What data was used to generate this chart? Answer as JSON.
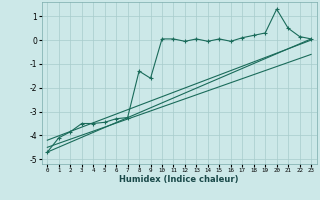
{
  "xlabel": "Humidex (Indice chaleur)",
  "xlim": [
    -0.5,
    23.5
  ],
  "ylim": [
    -5.2,
    1.6
  ],
  "yticks": [
    -5,
    -4,
    -3,
    -2,
    -1,
    0,
    1
  ],
  "xticks": [
    0,
    1,
    2,
    3,
    4,
    5,
    6,
    7,
    8,
    9,
    10,
    11,
    12,
    13,
    14,
    15,
    16,
    17,
    18,
    19,
    20,
    21,
    22,
    23
  ],
  "bg_color": "#cce8e8",
  "grid_color": "#a8cccc",
  "line_color": "#1a6b5a",
  "main_x": [
    0,
    1,
    2,
    3,
    4,
    5,
    6,
    7,
    8,
    9,
    10,
    11,
    12,
    13,
    14,
    15,
    16,
    17,
    18,
    19,
    20,
    21,
    22,
    23
  ],
  "main_y": [
    -4.7,
    -4.1,
    -3.85,
    -3.5,
    -3.5,
    -3.45,
    -3.3,
    -3.25,
    -1.3,
    -1.6,
    0.05,
    0.05,
    -0.05,
    0.05,
    -0.05,
    0.05,
    -0.05,
    0.1,
    0.2,
    0.3,
    1.3,
    0.5,
    0.15,
    0.05
  ],
  "line1_x": [
    0,
    23
  ],
  "line1_y": [
    -4.7,
    0.05
  ],
  "line2_x": [
    0,
    23
  ],
  "line2_y": [
    -4.5,
    -0.6
  ],
  "line3_x": [
    0,
    23
  ],
  "line3_y": [
    -4.2,
    0.0
  ]
}
